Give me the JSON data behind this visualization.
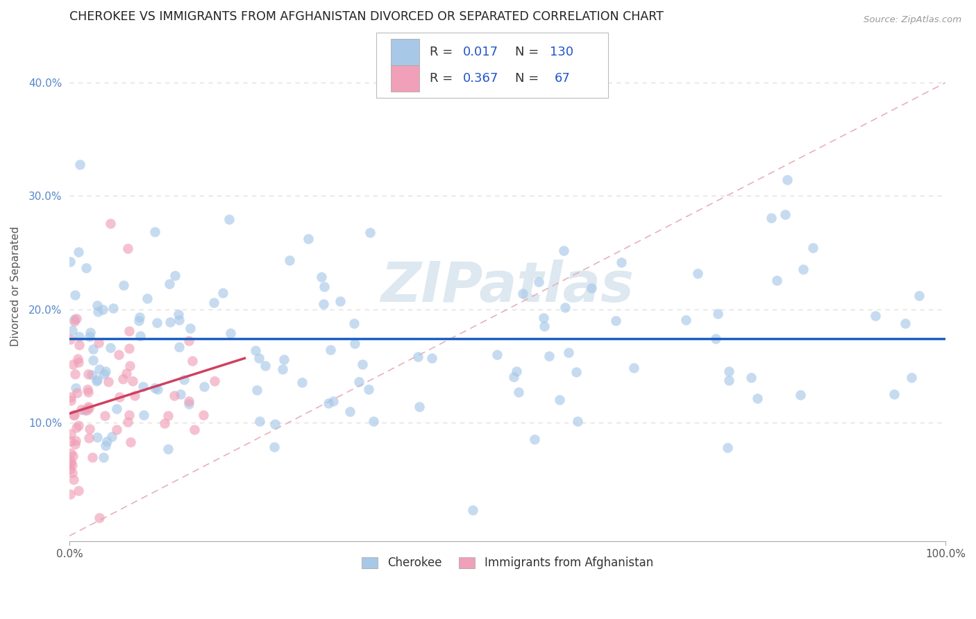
{
  "title": "CHEROKEE VS IMMIGRANTS FROM AFGHANISTAN DIVORCED OR SEPARATED CORRELATION CHART",
  "source": "Source: ZipAtlas.com",
  "ylabel": "Divorced or Separated",
  "watermark": "ZIPatlas",
  "color_cherokee": "#a8c8e8",
  "color_afghanistan": "#f0a0b8",
  "color_line_cherokee": "#1a5fbf",
  "color_line_afghanistan": "#d04060",
  "color_diagonal": "#e8b0b8",
  "xlim": [
    0.0,
    1.0
  ],
  "ylim": [
    -0.005,
    0.445
  ],
  "yticks": [
    0.1,
    0.2,
    0.3,
    0.4
  ],
  "ytick_labels": [
    "10.0%",
    "20.0%",
    "30.0%",
    "40.0%"
  ],
  "grid_color": "#dddddd",
  "title_fontsize": 12.5,
  "scatter_size": 110,
  "scatter_alpha": 0.65
}
